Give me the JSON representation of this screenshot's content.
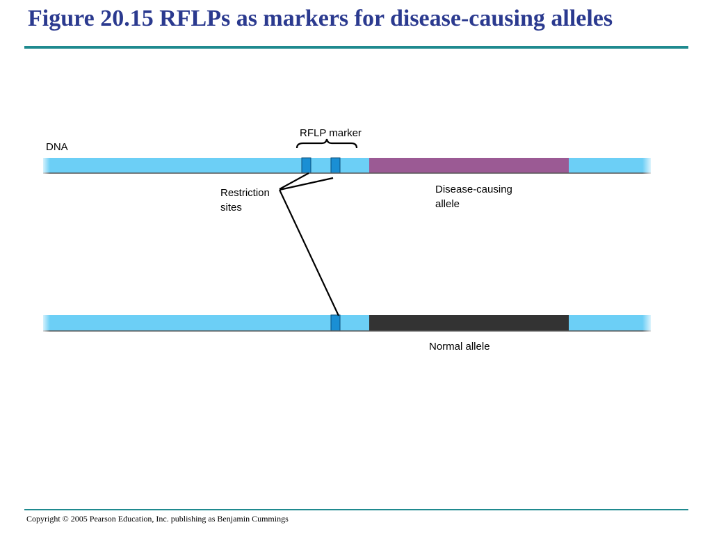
{
  "slide": {
    "title": "Figure 20.15 RFLPs as markers for disease-causing alleles",
    "copyright": "Copyright © 2005 Pearson Education, Inc. publishing as Benjamin Cummings"
  },
  "diagram": {
    "labels": {
      "rflp_marker": "RFLP marker",
      "dna": "DNA",
      "restriction_sites": "Restriction\nsites",
      "disease_allele": "Disease-causing\nallele",
      "normal_allele": "Normal allele"
    },
    "colors": {
      "dna_strand": "#6ccff6",
      "restriction_site": "#1a8fd4",
      "disease_allele": "#9b5a94",
      "normal_allele": "#333333",
      "title": "#2b3a8f",
      "rule": "#1f8a8f"
    }
  }
}
